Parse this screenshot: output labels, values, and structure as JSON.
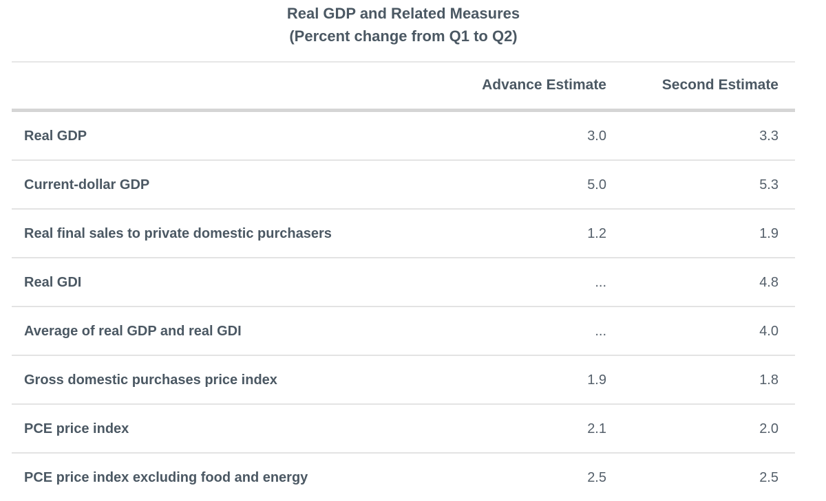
{
  "chart_data": {
    "type": "table",
    "title": "Real GDP and Related Measures",
    "subtitle": "(Percent change from Q1 to Q2)",
    "columns": [
      "",
      "Advance Estimate",
      "Second Estimate"
    ],
    "categories": [
      "Real GDP",
      "Current-dollar GDP",
      "Real final sales to private domestic purchasers",
      "Real GDI",
      "Average of real GDP and real GDI",
      "Gross domestic purchases price index",
      "PCE price index",
      "PCE price index excluding food and energy"
    ],
    "series": [
      {
        "name": "Advance Estimate",
        "values": [
          "3.0",
          "5.0",
          "1.2",
          "...",
          "...",
          "1.9",
          "2.1",
          "2.5"
        ]
      },
      {
        "name": "Second Estimate",
        "values": [
          "3.3",
          "5.3",
          "1.9",
          "4.8",
          "4.0",
          "1.8",
          "2.0",
          "2.5"
        ]
      }
    ],
    "layout": {
      "legend": "none",
      "grid": "horizontal-row-dividers",
      "value_alignment": "right"
    }
  },
  "colors": {
    "background": "#ffffff",
    "text": "#4b5863",
    "value_text": "#545f6a",
    "row_divider": "#e3e3e3",
    "header_rule_thick": "#d5d5d5",
    "header_rule_thin": "#e6e6e6"
  }
}
